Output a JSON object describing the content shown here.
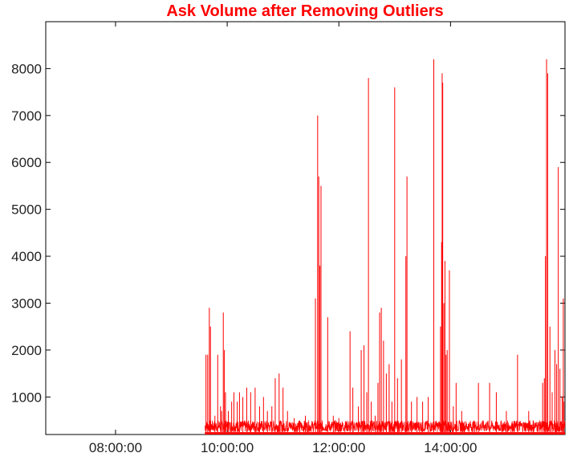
{
  "chart_data": {
    "type": "line",
    "title": "Ask Volume after Removing Outliers",
    "xlabel": "",
    "ylabel": "",
    "x_tick_labels": [
      "08:00:00",
      "10:00:00",
      "12:00:00",
      "14:00:00"
    ],
    "x_tick_hours": [
      8,
      10,
      12,
      14
    ],
    "xlim_hours": [
      6.75,
      16.05
    ],
    "y_ticks": [
      1000,
      2000,
      3000,
      4000,
      5000,
      6000,
      7000,
      8000
    ],
    "y_tick_labels": [
      "1000",
      "2000",
      "3000",
      "4000",
      "5000",
      "6000",
      "7000",
      "8000"
    ],
    "ylim": [
      200,
      9000
    ],
    "grid": false,
    "series_color": "#ff0000",
    "series": [
      {
        "name": "",
        "baseline_low": 250,
        "baseline_high": 500,
        "data_start_hour": 9.6,
        "data_end_hour": 16.05,
        "spikes": [
          [
            9.62,
            1900
          ],
          [
            9.65,
            1900
          ],
          [
            9.68,
            2900
          ],
          [
            9.7,
            2500
          ],
          [
            9.78,
            600
          ],
          [
            9.83,
            1900
          ],
          [
            9.88,
            800
          ],
          [
            9.9,
            700
          ],
          [
            9.93,
            2800
          ],
          [
            9.95,
            2000
          ],
          [
            9.97,
            1100
          ],
          [
            10.02,
            700
          ],
          [
            10.08,
            900
          ],
          [
            10.12,
            1100
          ],
          [
            10.18,
            900
          ],
          [
            10.22,
            1100
          ],
          [
            10.28,
            1000
          ],
          [
            10.35,
            1200
          ],
          [
            10.42,
            1100
          ],
          [
            10.5,
            1200
          ],
          [
            10.58,
            800
          ],
          [
            10.65,
            1000
          ],
          [
            10.72,
            700
          ],
          [
            10.8,
            800
          ],
          [
            10.86,
            1400
          ],
          [
            10.93,
            1500
          ],
          [
            11.0,
            1200
          ],
          [
            11.08,
            700
          ],
          [
            11.2,
            550
          ],
          [
            11.3,
            500
          ],
          [
            11.4,
            600
          ],
          [
            11.58,
            3100
          ],
          [
            11.62,
            7000
          ],
          [
            11.64,
            5700
          ],
          [
            11.66,
            3800
          ],
          [
            11.68,
            5500
          ],
          [
            11.8,
            2700
          ],
          [
            11.9,
            600
          ],
          [
            12.0,
            550
          ],
          [
            12.2,
            2400
          ],
          [
            12.25,
            1200
          ],
          [
            12.35,
            800
          ],
          [
            12.4,
            2000
          ],
          [
            12.45,
            2100
          ],
          [
            12.5,
            1100
          ],
          [
            12.53,
            7800
          ],
          [
            12.58,
            900
          ],
          [
            12.65,
            600
          ],
          [
            12.7,
            1300
          ],
          [
            12.73,
            2800
          ],
          [
            12.76,
            2900
          ],
          [
            12.8,
            2200
          ],
          [
            12.85,
            1500
          ],
          [
            12.9,
            1700
          ],
          [
            12.95,
            900
          ],
          [
            13.0,
            7600
          ],
          [
            13.05,
            1400
          ],
          [
            13.12,
            1800
          ],
          [
            13.2,
            4000
          ],
          [
            13.22,
            5700
          ],
          [
            13.3,
            900
          ],
          [
            13.4,
            1000
          ],
          [
            13.5,
            900
          ],
          [
            13.6,
            1000
          ],
          [
            13.7,
            8200
          ],
          [
            13.82,
            2500
          ],
          [
            13.84,
            4300
          ],
          [
            13.85,
            7900
          ],
          [
            13.86,
            7700
          ],
          [
            13.88,
            3000
          ],
          [
            13.9,
            3900
          ],
          [
            13.92,
            1900
          ],
          [
            13.94,
            2000
          ],
          [
            13.98,
            3700
          ],
          [
            14.05,
            800
          ],
          [
            14.1,
            1300
          ],
          [
            14.2,
            700
          ],
          [
            14.5,
            1300
          ],
          [
            14.7,
            1300
          ],
          [
            14.82,
            1100
          ],
          [
            15.0,
            700
          ],
          [
            15.2,
            1900
          ],
          [
            15.4,
            700
          ],
          [
            15.48,
            500
          ],
          [
            15.65,
            1300
          ],
          [
            15.68,
            1400
          ],
          [
            15.7,
            4000
          ],
          [
            15.72,
            8200
          ],
          [
            15.74,
            7900
          ],
          [
            15.78,
            2500
          ],
          [
            15.82,
            1100
          ],
          [
            15.87,
            2000
          ],
          [
            15.9,
            1700
          ],
          [
            15.93,
            5900
          ],
          [
            15.96,
            1600
          ],
          [
            16.0,
            1000
          ],
          [
            16.02,
            3100
          ],
          [
            16.03,
            900
          ]
        ]
      }
    ]
  }
}
